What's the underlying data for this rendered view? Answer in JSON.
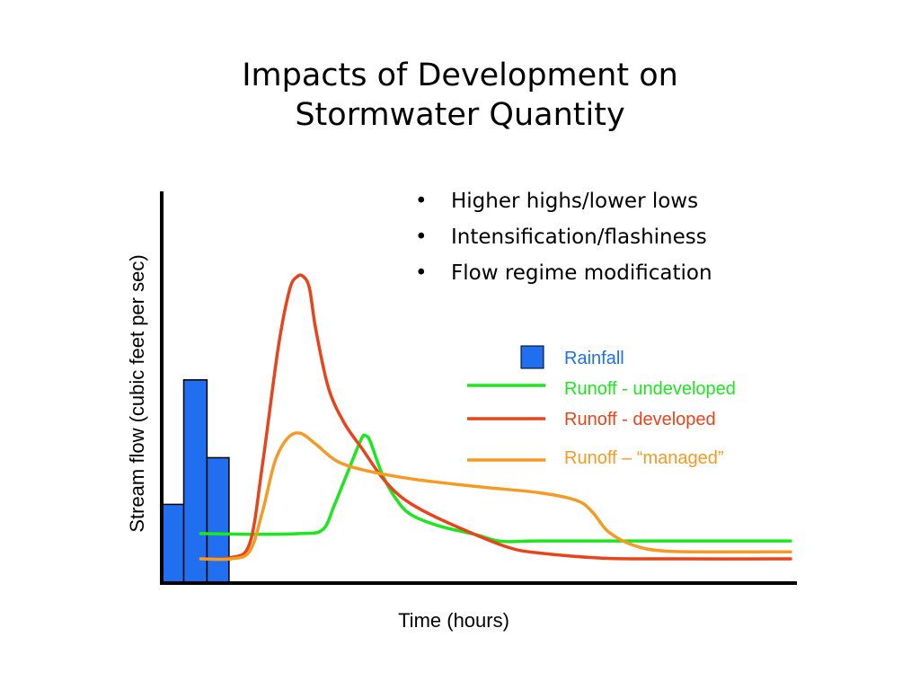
{
  "slide": {
    "title_line1": "Impacts of Development on",
    "title_line2": "Stormwater Quantity",
    "bullets": [
      "Higher highs/lower lows",
      "Intensification/flashiness",
      "Flow regime modification"
    ]
  },
  "chart_data": {
    "type": "line",
    "title": "",
    "xlabel": "Time (hours)",
    "ylabel": "Stream flow (cubic feet per sec)",
    "x_ticks": "none",
    "y_ticks": "none",
    "grid": false,
    "xlim": [
      0,
      100
    ],
    "ylim": [
      0,
      100
    ],
    "legend_position": "right",
    "rainfall": {
      "name": "Rainfall",
      "type": "bar",
      "color": "#1f6ff0",
      "bars": [
        {
          "x0": 0.0,
          "x1": 3.5,
          "value": 20
        },
        {
          "x0": 3.5,
          "x1": 7.2,
          "value": 52
        },
        {
          "x0": 7.2,
          "x1": 10.7,
          "value": 32
        }
      ]
    },
    "series": [
      {
        "name": "Runoff - undeveloped",
        "color": "#1ee61e",
        "points": [
          [
            6.2,
            12.5
          ],
          [
            15,
            12.3
          ],
          [
            22,
            12.5
          ],
          [
            25.6,
            13.5
          ],
          [
            27.5,
            20
          ],
          [
            30,
            30
          ],
          [
            31.8,
            37
          ],
          [
            32.5,
            37.6
          ],
          [
            33.2,
            36
          ],
          [
            35,
            28
          ],
          [
            37,
            22
          ],
          [
            39.5,
            17.5
          ],
          [
            44,
            14.5
          ],
          [
            50,
            12.2
          ],
          [
            54,
            10.5
          ],
          [
            60,
            10.6
          ],
          [
            80,
            10.6
          ],
          [
            100,
            10.6
          ]
        ]
      },
      {
        "name": "Runoff - developed",
        "color": "#e8441c",
        "points": [
          [
            6.2,
            6
          ],
          [
            11,
            6.3
          ],
          [
            14,
            10
          ],
          [
            16,
            30
          ],
          [
            18.5,
            60
          ],
          [
            20.3,
            75
          ],
          [
            21.5,
            78.5
          ],
          [
            22.5,
            78.6
          ],
          [
            23.5,
            75.5
          ],
          [
            24.5,
            65
          ],
          [
            26.5,
            50
          ],
          [
            29,
            41
          ],
          [
            32,
            34
          ],
          [
            35,
            27
          ],
          [
            38,
            22
          ],
          [
            42,
            18
          ],
          [
            48,
            13.5
          ],
          [
            55,
            9
          ],
          [
            60,
            7.5
          ],
          [
            70,
            6.2
          ],
          [
            80,
            6
          ],
          [
            100,
            6
          ]
        ]
      },
      {
        "name": "Runoff – “managed”",
        "color": "#f59a23",
        "points": [
          [
            6.2,
            6
          ],
          [
            11,
            6
          ],
          [
            14,
            8
          ],
          [
            16,
            18
          ],
          [
            18,
            31
          ],
          [
            20,
            37
          ],
          [
            22,
            38.3
          ],
          [
            24.5,
            35.5
          ],
          [
            28,
            31
          ],
          [
            33,
            28.5
          ],
          [
            40,
            26.5
          ],
          [
            50,
            24.6
          ],
          [
            60,
            23
          ],
          [
            66,
            21
          ],
          [
            68.5,
            18
          ],
          [
            71,
            13
          ],
          [
            75,
            9.5
          ],
          [
            80,
            8
          ],
          [
            90,
            7.8
          ],
          [
            100,
            7.8
          ]
        ]
      }
    ]
  }
}
